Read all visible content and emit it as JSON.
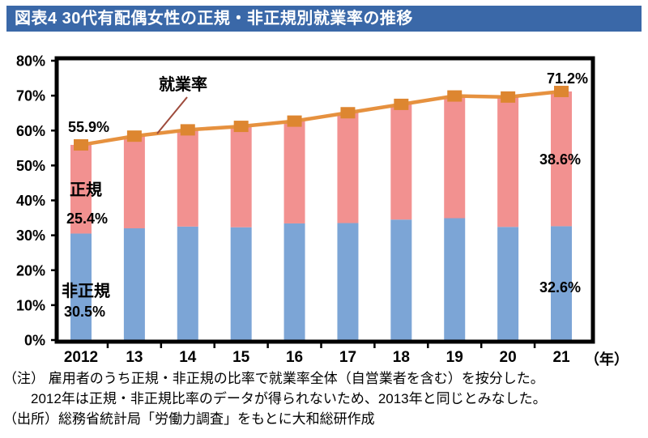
{
  "title": "図表4 30代有配偶女性の正規・非正規別就業率の推移",
  "colors": {
    "banner": "#3A68A8",
    "bar_nonregular": "#7CA5D6",
    "bar_regular": "#F29190",
    "line": "#E6913F",
    "marker": "#DD8630",
    "leader": "#9E4B3C",
    "frame": "#000000",
    "text": "#000000"
  },
  "chart_data": {
    "type": "bar",
    "subtype": "stacked-bar-with-line",
    "title": "図表4 30代有配偶女性の正規・非正規別就業率の推移",
    "categories": [
      "2012",
      "13",
      "14",
      "15",
      "16",
      "17",
      "18",
      "19",
      "20",
      "21"
    ],
    "series": [
      {
        "name": "非正規",
        "type": "bar",
        "color": "#7CA5D6",
        "values": [
          30.5,
          32.0,
          32.5,
          32.3,
          33.4,
          33.5,
          34.5,
          34.9,
          32.4,
          32.6
        ]
      },
      {
        "name": "正規",
        "type": "bar",
        "color": "#F29190",
        "values": [
          25.4,
          26.4,
          27.7,
          28.9,
          29.3,
          31.6,
          33.0,
          35.0,
          37.2,
          38.6
        ]
      },
      {
        "name": "就業率",
        "type": "line",
        "color": "#E6913F",
        "values": [
          55.9,
          58.4,
          60.2,
          61.2,
          62.7,
          65.1,
          67.5,
          69.9,
          69.6,
          71.2
        ]
      }
    ],
    "ylim": [
      0,
      80
    ],
    "yticks": [
      "0%",
      "10%",
      "20%",
      "30%",
      "40%",
      "50%",
      "60%",
      "70%",
      "80%"
    ],
    "xlabel": "",
    "ylabel": "",
    "xaxis_unit": "（年）",
    "grid": false,
    "legend_position": "none",
    "annotations": [
      {
        "id": "line_label",
        "text": "就業率"
      },
      {
        "id": "first_total",
        "text": "55.9%"
      },
      {
        "id": "regular_label",
        "text": "正規"
      },
      {
        "id": "first_regular",
        "text": "25.4%"
      },
      {
        "id": "nonregular_label",
        "text": "非正規"
      },
      {
        "id": "first_nonregular",
        "text": "30.5%"
      },
      {
        "id": "last_total",
        "text": "71.2%"
      },
      {
        "id": "last_regular",
        "text": "38.6%"
      },
      {
        "id": "last_nonregular",
        "text": "32.6%"
      }
    ]
  },
  "notes": {
    "line1": "（注） 雇用者のうち正規・非正規の比率で就業率全体（自営業者を含む）を按分した。",
    "line2": "2012年は正規・非正規比率のデータが得られないため、2013年と同じとみなした。",
    "line3": "（出所）総務省統計局「労働力調査」をもとに大和総研作成"
  }
}
